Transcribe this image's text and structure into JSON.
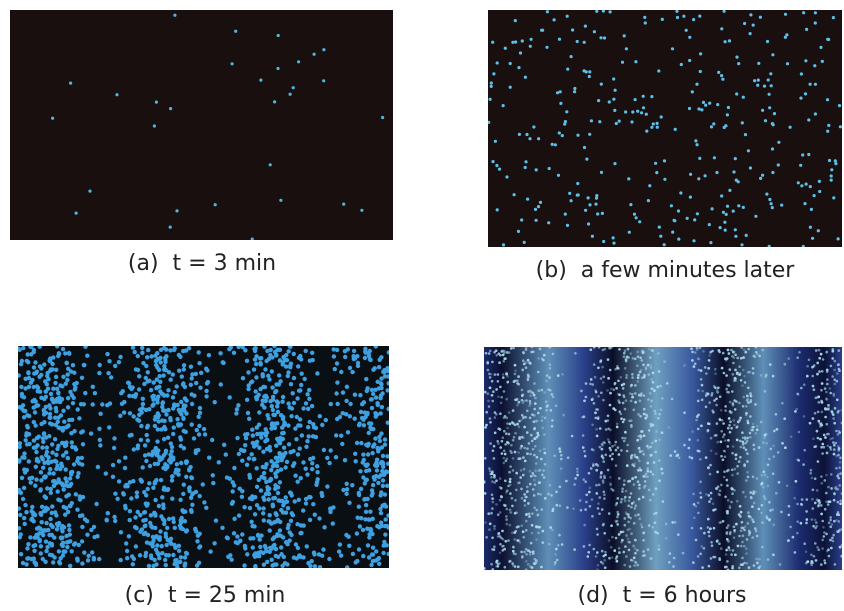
{
  "panels": [
    {
      "caption": "(a)  t = 3 min"
    },
    {
      "caption": "(b)  a few minutes later"
    },
    {
      "caption": "(c)  t = 25 min"
    },
    {
      "caption": "(d)  t = 6 hours"
    }
  ]
}
